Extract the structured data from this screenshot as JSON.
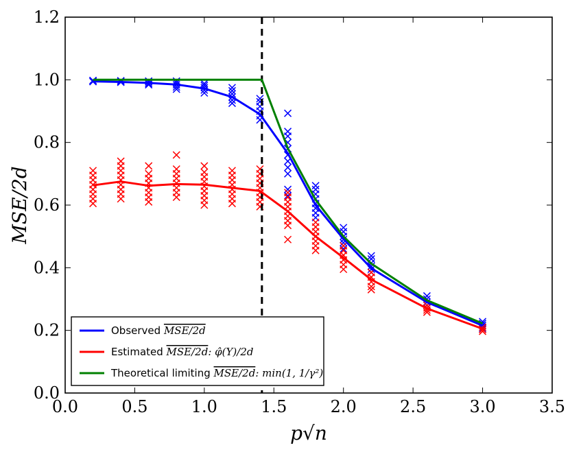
{
  "chart_data": {
    "type": "line",
    "title": "",
    "xlabel": "p√n",
    "ylabel": "MSE/2d",
    "xlim": [
      0.0,
      3.5
    ],
    "ylim": [
      0.0,
      1.2
    ],
    "xticks": [
      "0.0",
      "0.5",
      "1.0",
      "1.5",
      "2.0",
      "2.5",
      "3.0",
      "3.5"
    ],
    "yticks": [
      "0.0",
      "0.2",
      "0.4",
      "0.6",
      "0.8",
      "1.0",
      "1.2"
    ],
    "threshold_x": 1.414,
    "legend_position": "bottom-left",
    "x": [
      0.2,
      0.4,
      0.6,
      0.8,
      1.0,
      1.2,
      1.4,
      1.6,
      1.8,
      2.0,
      2.2,
      2.6,
      3.0
    ],
    "series": [
      {
        "name": "Observed",
        "legend": {
          "prefix": "Observed ",
          "math": "MSE/2d",
          "suffix": ""
        },
        "color": "#0000ff",
        "line": [
          0.995,
          0.993,
          0.99,
          0.985,
          0.972,
          0.945,
          0.89,
          0.765,
          0.6,
          0.492,
          0.398,
          0.29,
          0.215
        ],
        "scatter": [
          [
            0.998,
            0.996,
            0.994
          ],
          [
            0.997,
            0.995,
            0.992
          ],
          [
            0.996,
            0.993,
            0.988,
            0.984
          ],
          [
            0.996,
            0.99,
            0.984,
            0.977,
            0.97
          ],
          [
            0.988,
            0.982,
            0.975,
            0.967,
            0.958
          ],
          [
            0.975,
            0.965,
            0.955,
            0.945,
            0.935,
            0.925
          ],
          [
            0.94,
            0.93,
            0.915,
            0.9,
            0.885,
            0.872
          ],
          [
            0.893,
            0.835,
            0.82,
            0.8,
            0.78,
            0.76,
            0.74,
            0.72,
            0.7,
            0.65,
            0.63
          ],
          [
            0.662,
            0.65,
            0.635,
            0.62,
            0.605,
            0.59,
            0.575,
            0.56
          ],
          [
            0.528,
            0.515,
            0.5,
            0.49,
            0.48,
            0.47,
            0.46
          ],
          [
            0.438,
            0.428,
            0.415,
            0.405,
            0.395,
            0.385
          ],
          [
            0.31,
            0.3,
            0.29,
            0.28
          ],
          [
            0.228,
            0.222,
            0.216,
            0.21,
            0.205
          ]
        ]
      },
      {
        "name": "Estimated",
        "legend": {
          "prefix": "Estimated ",
          "math": "MSE/2d",
          "suffix": ": φ̂(Y)/2d"
        },
        "color": "#ff0000",
        "line": [
          0.663,
          0.675,
          0.662,
          0.667,
          0.665,
          0.655,
          0.645,
          0.58,
          0.5,
          0.432,
          0.362,
          0.27,
          0.205
        ],
        "scatter": [
          [
            0.71,
            0.695,
            0.68,
            0.665,
            0.65,
            0.635,
            0.62,
            0.605
          ],
          [
            0.74,
            0.725,
            0.71,
            0.695,
            0.68,
            0.665,
            0.65,
            0.635,
            0.62
          ],
          [
            0.725,
            0.7,
            0.685,
            0.67,
            0.655,
            0.64,
            0.625,
            0.61
          ],
          [
            0.76,
            0.715,
            0.7,
            0.685,
            0.67,
            0.655,
            0.64,
            0.625
          ],
          [
            0.725,
            0.705,
            0.69,
            0.675,
            0.66,
            0.645,
            0.63,
            0.615,
            0.6
          ],
          [
            0.71,
            0.695,
            0.68,
            0.665,
            0.65,
            0.635,
            0.62,
            0.605
          ],
          [
            0.715,
            0.7,
            0.685,
            0.67,
            0.655,
            0.64,
            0.625,
            0.61,
            0.595
          ],
          [
            0.64,
            0.625,
            0.61,
            0.595,
            0.58,
            0.565,
            0.55,
            0.535,
            0.49
          ],
          [
            0.545,
            0.53,
            0.515,
            0.5,
            0.485,
            0.47,
            0.455
          ],
          [
            0.47,
            0.455,
            0.44,
            0.425,
            0.41,
            0.395
          ],
          [
            0.385,
            0.37,
            0.355,
            0.34,
            0.33
          ],
          [
            0.28,
            0.272,
            0.265,
            0.258
          ],
          [
            0.21,
            0.203,
            0.197
          ]
        ]
      },
      {
        "name": "Theoretical limiting",
        "legend": {
          "prefix": "Theoretical limiting ",
          "math": "MSE/2d",
          "suffix": ": min(1, 1/γ²)"
        },
        "color": "#008000",
        "x_line": [
          0.2,
          0.4,
          0.6,
          0.8,
          1.0,
          1.2,
          1.414,
          1.6,
          1.8,
          2.0,
          2.2,
          2.6,
          3.0
        ],
        "line": [
          1.0,
          1.0,
          1.0,
          1.0,
          1.0,
          1.0,
          1.0,
          0.781,
          0.617,
          0.5,
          0.413,
          0.296,
          0.222
        ]
      }
    ]
  }
}
